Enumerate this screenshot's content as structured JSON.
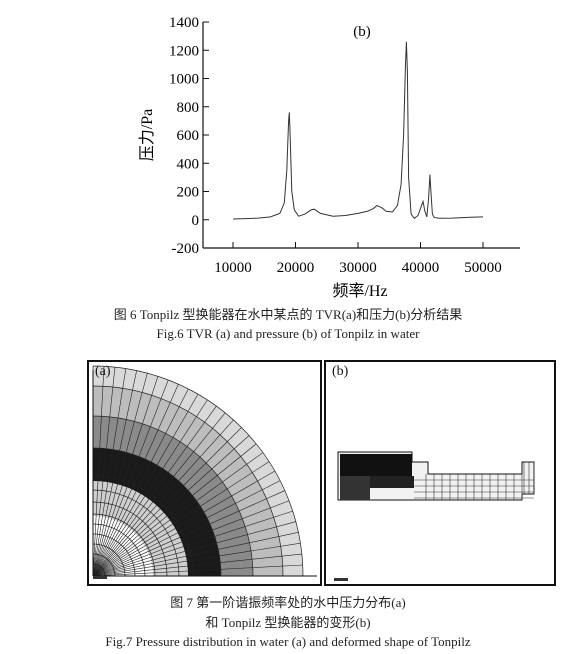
{
  "chart_data": {
    "type": "line",
    "title": "(b)",
    "xlabel": "频率/Hz",
    "ylabel": "压力/Pa",
    "xlim": [
      10000,
      50000
    ],
    "ylim": [
      -200,
      1400
    ],
    "x_ticks": [
      10000,
      20000,
      30000,
      40000,
      50000
    ],
    "y_ticks": [
      -200,
      0,
      200,
      400,
      600,
      800,
      1000,
      1200,
      1400
    ],
    "grid": false,
    "series": [
      {
        "x": [
          10000,
          12000,
          14000,
          16000,
          17500,
          18200,
          18600,
          18900,
          19000,
          19100,
          19400,
          19800,
          20500,
          21500,
          22500,
          23000,
          24000,
          26000,
          28000,
          30000,
          31500,
          32500,
          33000,
          33800,
          34500,
          35500,
          36300,
          36900,
          37300,
          37600,
          37750,
          37900,
          38100,
          38500,
          39000,
          39600,
          40000,
          40400,
          40700,
          41000,
          41300,
          41500,
          41700,
          41900,
          42200,
          43000,
          45000,
          48000,
          50000
        ],
        "y": [
          5,
          8,
          12,
          20,
          45,
          120,
          350,
          700,
          760,
          650,
          200,
          70,
          25,
          40,
          70,
          75,
          45,
          25,
          30,
          45,
          60,
          80,
          100,
          85,
          60,
          55,
          100,
          250,
          600,
          1100,
          1260,
          1050,
          300,
          40,
          10,
          30,
          80,
          130,
          60,
          20,
          150,
          320,
          180,
          40,
          15,
          10,
          12,
          18,
          20
        ]
      }
    ]
  },
  "captions": {
    "fig6_cn": "图 6   Tonpilz 型换能器在水中某点的 TVR(a)和压力(b)分析结果",
    "fig6_en": "Fig.6    TVR (a) and pressure (b) of Tonpilz in water",
    "fig7_cn_1": "图 7   第一阶谐振频率处的水中压力分布(a)",
    "fig7_cn_2": "和 Tonpilz 型换能器的变形(b)",
    "fig7_en": "Fig.7    Pressure distribution in water (a) and deformed shape of Tonpilz"
  },
  "figure7": {
    "panel_a_label": "(a)",
    "panel_b_label": "(b)"
  }
}
